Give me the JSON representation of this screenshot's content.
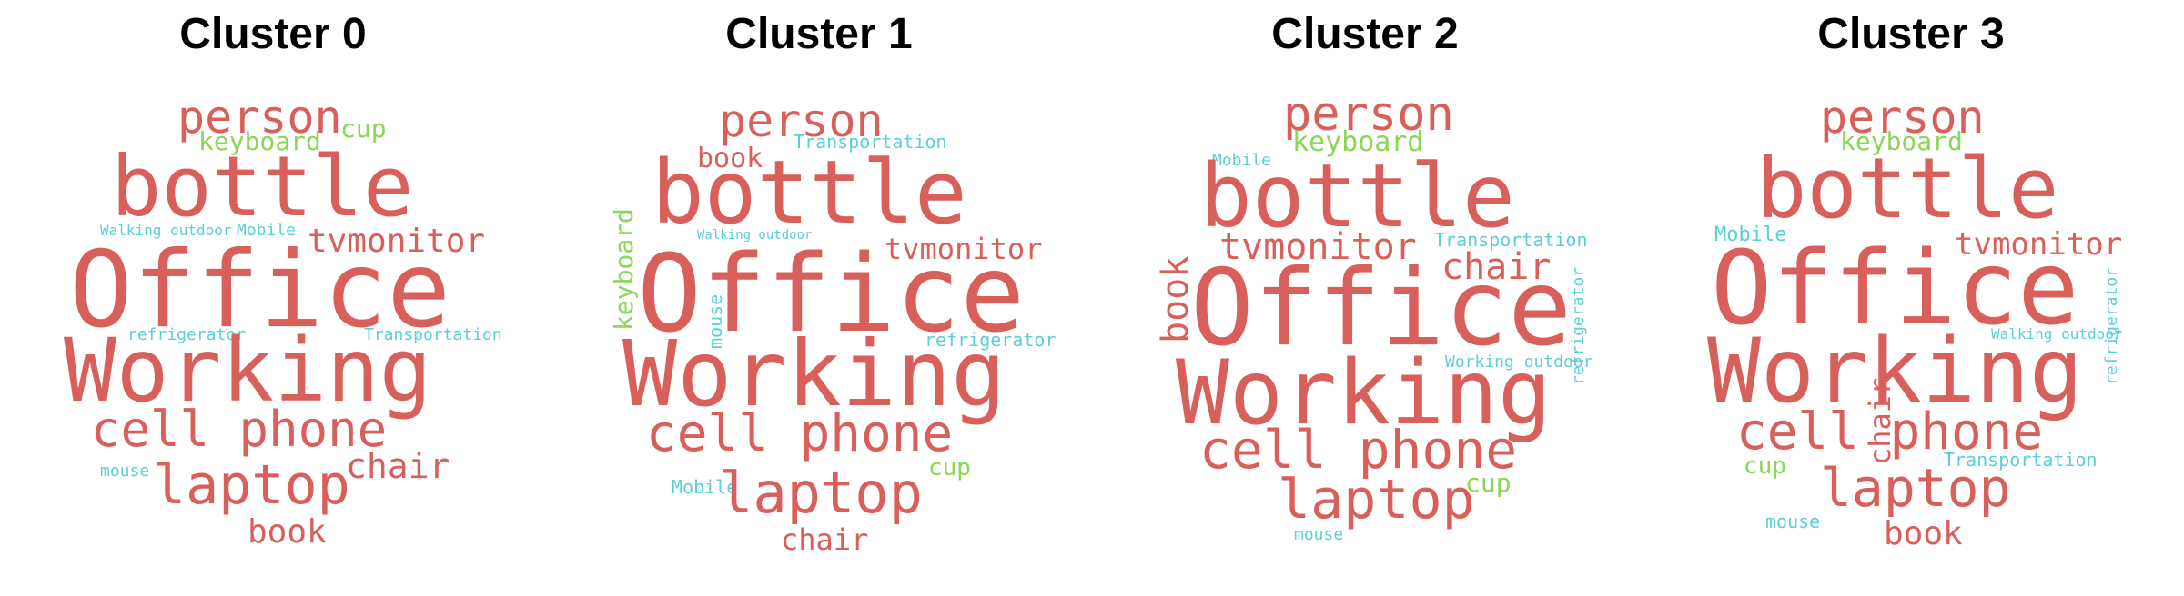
{
  "colors": {
    "red": "#d9605a",
    "green": "#8ad655",
    "cyan": "#5bcfd6"
  },
  "panels": [
    {
      "title": "Cluster 0",
      "words": [
        {
          "text": "person",
          "color": "red"
        },
        {
          "text": "cup",
          "color": "green"
        },
        {
          "text": "keyboard",
          "color": "green"
        },
        {
          "text": "bottle",
          "color": "red"
        },
        {
          "text": "Walking outdoor",
          "color": "cyan"
        },
        {
          "text": "Mobile",
          "color": "cyan"
        },
        {
          "text": "tvmonitor",
          "color": "red"
        },
        {
          "text": "Office",
          "color": "red"
        },
        {
          "text": "refrigerator",
          "color": "cyan"
        },
        {
          "text": "Transportation",
          "color": "cyan"
        },
        {
          "text": "Working",
          "color": "red"
        },
        {
          "text": "cell phone",
          "color": "red"
        },
        {
          "text": "chair",
          "color": "red"
        },
        {
          "text": "mouse",
          "color": "cyan"
        },
        {
          "text": "laptop",
          "color": "red"
        },
        {
          "text": "book",
          "color": "red"
        }
      ]
    },
    {
      "title": "Cluster 1",
      "words": [
        {
          "text": "person",
          "color": "red"
        },
        {
          "text": "book",
          "color": "red"
        },
        {
          "text": "Transportation",
          "color": "cyan"
        },
        {
          "text": "bottle",
          "color": "red"
        },
        {
          "text": "Walking outdoor",
          "color": "cyan"
        },
        {
          "text": "keyboard",
          "color": "green"
        },
        {
          "text": "tvmonitor",
          "color": "red"
        },
        {
          "text": "Office",
          "color": "red"
        },
        {
          "text": "mouse",
          "color": "cyan"
        },
        {
          "text": "refrigerator",
          "color": "cyan"
        },
        {
          "text": "Working",
          "color": "red"
        },
        {
          "text": "cell phone",
          "color": "red"
        },
        {
          "text": "cup",
          "color": "green"
        },
        {
          "text": "Mobile",
          "color": "cyan"
        },
        {
          "text": "laptop",
          "color": "red"
        },
        {
          "text": "chair",
          "color": "red"
        }
      ]
    },
    {
      "title": "Cluster 2",
      "words": [
        {
          "text": "person",
          "color": "red"
        },
        {
          "text": "keyboard",
          "color": "green"
        },
        {
          "text": "Mobile",
          "color": "cyan"
        },
        {
          "text": "bottle",
          "color": "red"
        },
        {
          "text": "tvmonitor",
          "color": "red"
        },
        {
          "text": "Transportation",
          "color": "cyan"
        },
        {
          "text": "chair",
          "color": "red"
        },
        {
          "text": "book",
          "color": "red"
        },
        {
          "text": "Office",
          "color": "red"
        },
        {
          "text": "refrigerator",
          "color": "cyan"
        },
        {
          "text": "Working outdoor",
          "color": "cyan"
        },
        {
          "text": "Working",
          "color": "red"
        },
        {
          "text": "cell phone",
          "color": "red"
        },
        {
          "text": "cup",
          "color": "green"
        },
        {
          "text": "laptop",
          "color": "red"
        },
        {
          "text": "mouse",
          "color": "cyan"
        }
      ]
    },
    {
      "title": "Cluster 3",
      "words": [
        {
          "text": "person",
          "color": "red"
        },
        {
          "text": "keyboard",
          "color": "green"
        },
        {
          "text": "bottle",
          "color": "red"
        },
        {
          "text": "Mobile",
          "color": "cyan"
        },
        {
          "text": "tvmonitor",
          "color": "red"
        },
        {
          "text": "Office",
          "color": "red"
        },
        {
          "text": "refrigerator",
          "color": "cyan"
        },
        {
          "text": "Walking outdoor",
          "color": "cyan"
        },
        {
          "text": "Working",
          "color": "red"
        },
        {
          "text": "chair",
          "color": "red"
        },
        {
          "text": "cell phone",
          "color": "red"
        },
        {
          "text": "cup",
          "color": "green"
        },
        {
          "text": "Transportation",
          "color": "cyan"
        },
        {
          "text": "laptop",
          "color": "red"
        },
        {
          "text": "mouse",
          "color": "cyan"
        },
        {
          "text": "book",
          "color": "red"
        }
      ]
    }
  ]
}
